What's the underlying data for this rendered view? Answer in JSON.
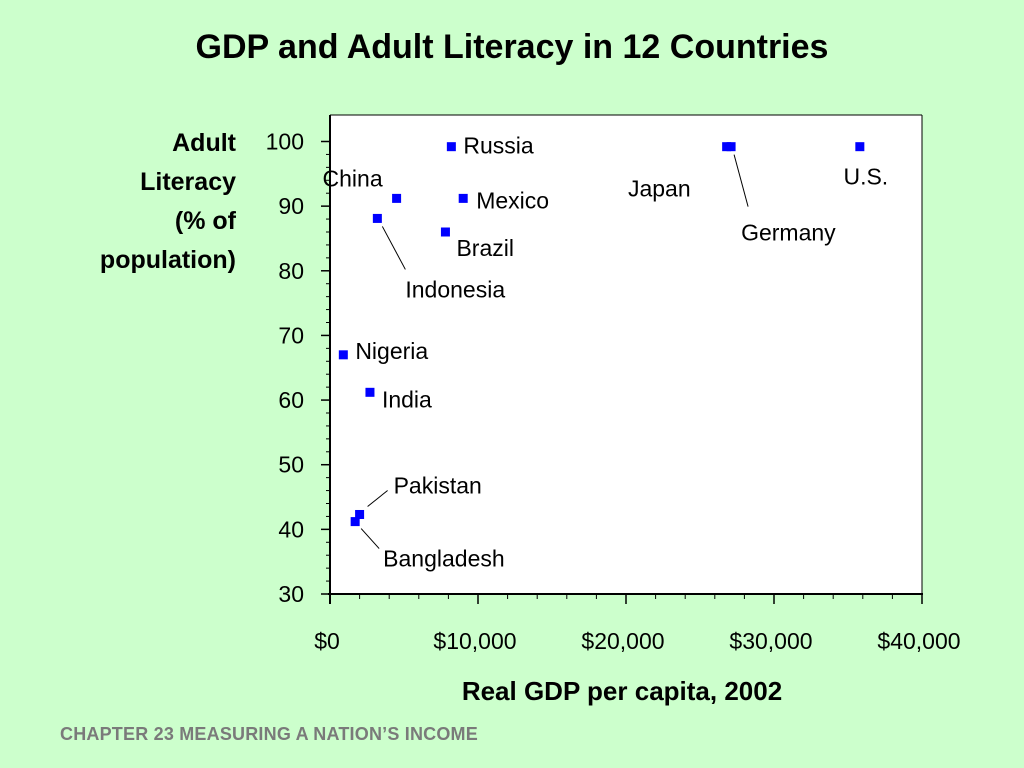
{
  "title": "GDP and Adult Literacy in 12 Countries",
  "footer": "CHAPTER 23  MEASURING A NATION’S INCOME",
  "chart_data": {
    "type": "scatter",
    "title": "GDP and Adult Literacy in 12 Countries",
    "xlabel": "Real GDP per capita, 2002",
    "ylabel_lines": [
      "Adult",
      "Literacy",
      "(% of",
      "population)"
    ],
    "xlim": [
      0,
      40000
    ],
    "ylim": [
      30,
      100
    ],
    "x_ticks": [
      0,
      10000,
      20000,
      30000,
      40000
    ],
    "x_tick_labels": [
      "$0",
      "$10,000",
      "$20,000",
      "$30,000",
      "$40,000"
    ],
    "y_ticks": [
      30,
      40,
      50,
      60,
      70,
      80,
      90,
      100
    ],
    "y_tick_labels": [
      "30",
      "40",
      "50",
      "60",
      "70",
      "80",
      "90",
      "100"
    ],
    "grid": false,
    "marker_color": "#0000ff",
    "points": [
      {
        "label": "Russia",
        "x": 8200,
        "y": 99.2
      },
      {
        "label": "China",
        "x": 4500,
        "y": 91.2
      },
      {
        "label": "Mexico",
        "x": 9000,
        "y": 91.2
      },
      {
        "label": "Indonesia",
        "x": 3200,
        "y": 88.1
      },
      {
        "label": "Brazil",
        "x": 7800,
        "y": 86.0
      },
      {
        "label": "Japan",
        "x": 26800,
        "y": 99.2
      },
      {
        "label": "Germany",
        "x": 27100,
        "y": 99.2
      },
      {
        "label": "U.S.",
        "x": 35800,
        "y": 99.2
      },
      {
        "label": "Nigeria",
        "x": 900,
        "y": 67.0
      },
      {
        "label": "India",
        "x": 2700,
        "y": 61.2
      },
      {
        "label": "Pakistan",
        "x": 2000,
        "y": 42.3
      },
      {
        "label": "Bangladesh",
        "x": 1700,
        "y": 41.2
      }
    ]
  }
}
